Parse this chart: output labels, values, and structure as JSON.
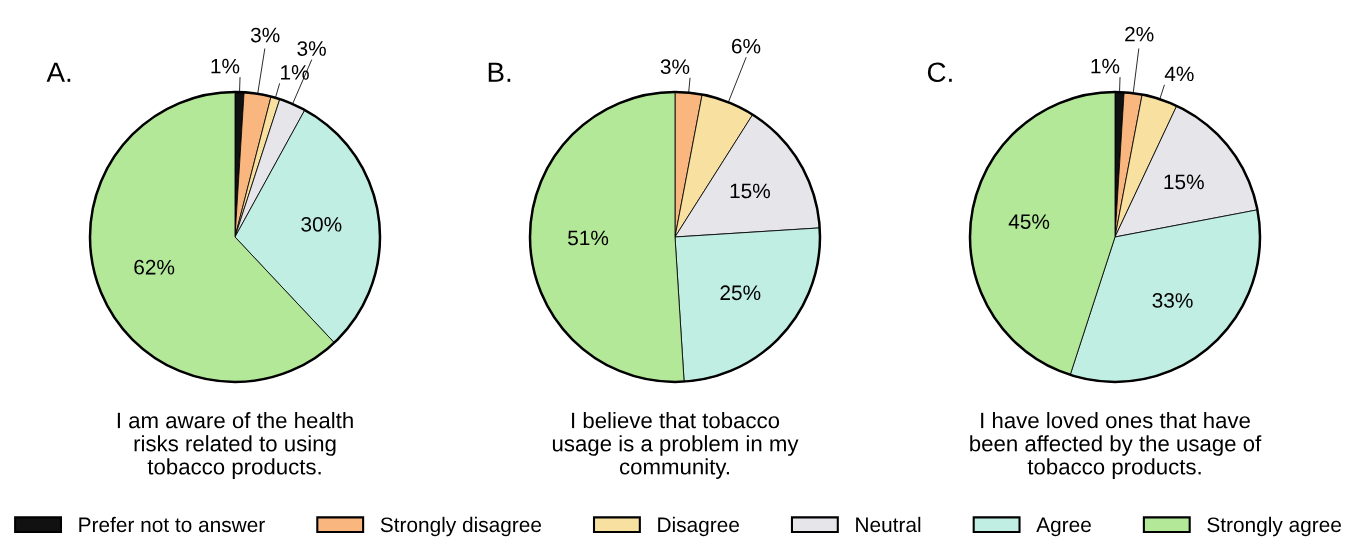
{
  "chart_data": [
    {
      "type": "pie",
      "title": "A.",
      "xlabel": "I am aware of the health\nrisks related to using\ntobacco products.",
      "legend": "bottom",
      "categories": [
        "Prefer not to answer",
        "Strongly disagree",
        "Disagree",
        "Neutral",
        "Agree",
        "Strongly agree"
      ],
      "values": [
        1,
        3,
        1,
        3,
        30,
        62
      ],
      "value_labels": [
        "1%",
        "3%",
        "1%",
        "3%",
        "30%",
        "62%"
      ],
      "colors": [
        "#111111",
        "#f9b77f",
        "#f7e0a0",
        "#e6e6ea",
        "#c0eee2",
        "#b3e898"
      ]
    },
    {
      "type": "pie",
      "title": "B.",
      "xlabel": "I believe that tobacco\nusage is a problem in my\ncommunity.",
      "categories": [
        null,
        null,
        null,
        null,
        null
      ],
      "values": [
        3,
        6,
        15,
        25,
        51
      ],
      "value_labels": [
        "3%",
        "6%",
        "15%",
        "25%",
        "51%"
      ],
      "colors": [
        "#f9b77f",
        "#f7e0a0",
        "#e6e6ea",
        "#c0eee2",
        "#b3e898"
      ]
    },
    {
      "type": "pie",
      "title": "C.",
      "xlabel": "I have loved ones that have\nbeen affected by the usage of\ntobacco products.",
      "categories": [
        null,
        null,
        null,
        null,
        null,
        null
      ],
      "values": [
        1,
        2,
        4,
        15,
        33,
        45
      ],
      "value_labels": [
        "1%",
        "2%",
        "4%",
        "15%",
        "33%",
        "45%"
      ],
      "colors": [
        "#111111",
        "#f9b77f",
        "#f7e0a0",
        "#e6e6ea",
        "#c0eee2",
        "#b3e898"
      ]
    }
  ]
}
